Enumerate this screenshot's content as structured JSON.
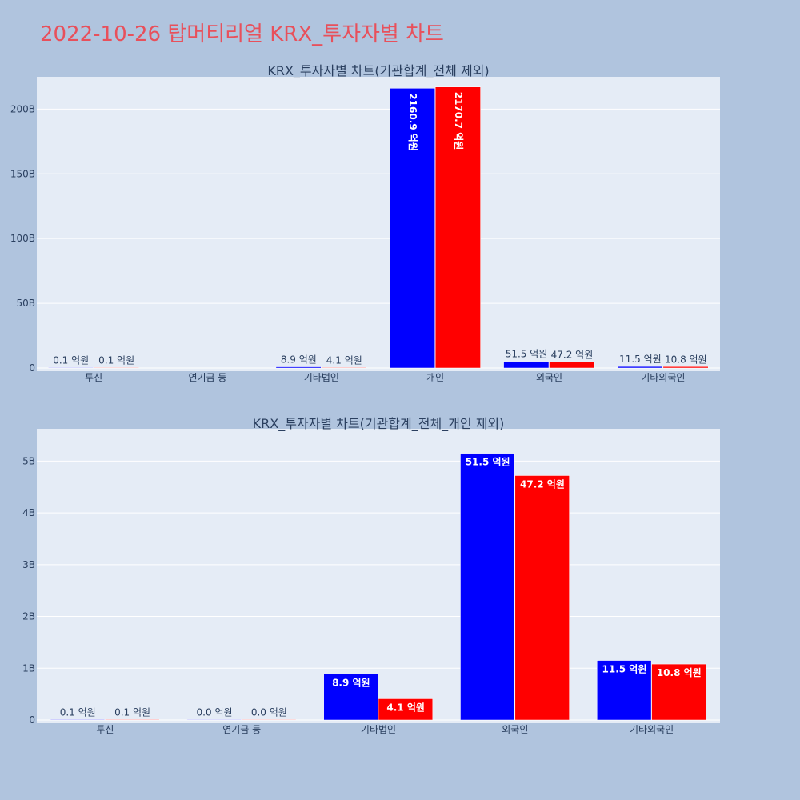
{
  "page_title": "2022-10-26 탑머티리얼 KRX_투자자별 차트",
  "colors": {
    "background": "#b0c4de",
    "plot_bg": "#e5ecf6",
    "series_1": "#0000ff",
    "series_2": "#ff0000",
    "title": "#e8505b"
  },
  "chart_data": [
    {
      "type": "bar",
      "title": "KRX_투자자별 차트(기관합계_전체 제외)",
      "categories": [
        "투신",
        "연기금 등",
        "기타법인",
        "개인",
        "외국인",
        "기타외국인"
      ],
      "ylim": [
        0,
        220000000000
      ],
      "y_ticks": [
        0,
        50000000000,
        100000000000,
        150000000000,
        200000000000
      ],
      "y_tick_labels": [
        "0",
        "50B",
        "100B",
        "150B",
        "200B"
      ],
      "grid": true,
      "text_orientation": "vertical-when-inside",
      "series": [
        {
          "color": "#0000ff",
          "values": [
            10000000,
            null,
            890000000,
            216090000000,
            5150000000,
            1150000000
          ],
          "labels": [
            "0.1 억원",
            "",
            "8.9 억원",
            "2160.9 억원",
            "51.5 억원",
            "11.5 억원"
          ]
        },
        {
          "color": "#ff0000",
          "values": [
            10000000,
            null,
            410000000,
            217070000000,
            4720000000,
            1080000000
          ],
          "labels": [
            "0.1 억원",
            "",
            "4.1 억원",
            "2170.7 억원",
            "47.2 억원",
            "10.8 억원"
          ]
        }
      ]
    },
    {
      "type": "bar",
      "title": "KRX_투자자별 차트(기관합계_전체_개인 제외)",
      "categories": [
        "투신",
        "연기금 등",
        "기타법인",
        "외국인",
        "기타외국인"
      ],
      "ylim": [
        0,
        5500000000
      ],
      "y_ticks": [
        0,
        1000000000,
        2000000000,
        3000000000,
        4000000000,
        5000000000
      ],
      "y_tick_labels": [
        "0",
        "1B",
        "2B",
        "3B",
        "4B",
        "5B"
      ],
      "grid": true,
      "text_orientation": "horizontal",
      "series": [
        {
          "color": "#0000ff",
          "values": [
            10000000,
            0,
            890000000,
            5150000000,
            1150000000
          ],
          "labels": [
            "0.1 억원",
            "0.0 억원",
            "8.9 억원",
            "51.5 억원",
            "11.5 억원"
          ]
        },
        {
          "color": "#ff0000",
          "values": [
            10000000,
            0,
            410000000,
            4720000000,
            1080000000
          ],
          "labels": [
            "0.1 억원",
            "0.0 억원",
            "4.1 억원",
            "47.2 억원",
            "10.8 억원"
          ]
        }
      ]
    }
  ]
}
